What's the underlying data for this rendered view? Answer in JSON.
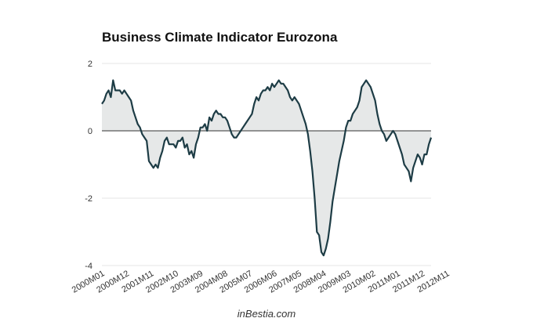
{
  "chart_data": {
    "type": "area",
    "title": "Business Climate Indicator Eurozona",
    "source": "inBestia.com",
    "ylim": [
      -4,
      2
    ],
    "yticks": [
      2,
      0,
      -2,
      -4
    ],
    "grid": true,
    "xticks": [
      "2000M01",
      "2000M12",
      "2001M11",
      "2002M10",
      "2003M09",
      "2004M08",
      "2005M07",
      "2006M06",
      "2007M05",
      "2008M04",
      "2009M03",
      "2010M02",
      "2011M01",
      "2011M12",
      "2012M11"
    ],
    "x_start": "2000M01",
    "x_frequency": "monthly",
    "series": [
      {
        "color": "#1d3c45",
        "fill": "#e6e8e8",
        "values": [
          0.8,
          0.9,
          1.1,
          1.2,
          1.0,
          1.5,
          1.2,
          1.2,
          1.2,
          1.1,
          1.2,
          1.1,
          1.0,
          0.9,
          0.6,
          0.4,
          0.2,
          0.1,
          -0.1,
          -0.2,
          -0.3,
          -0.9,
          -1.0,
          -1.1,
          -1.0,
          -1.1,
          -0.8,
          -0.6,
          -0.3,
          -0.2,
          -0.4,
          -0.4,
          -0.4,
          -0.5,
          -0.3,
          -0.3,
          -0.2,
          -0.5,
          -0.4,
          -0.7,
          -0.6,
          -0.8,
          -0.4,
          -0.2,
          0.1,
          0.1,
          0.2,
          0.0,
          0.4,
          0.3,
          0.5,
          0.6,
          0.5,
          0.5,
          0.4,
          0.4,
          0.3,
          0.1,
          -0.1,
          -0.2,
          -0.2,
          -0.1,
          0.0,
          0.1,
          0.2,
          0.3,
          0.4,
          0.5,
          0.8,
          1.0,
          0.9,
          1.1,
          1.2,
          1.2,
          1.3,
          1.2,
          1.4,
          1.3,
          1.4,
          1.5,
          1.4,
          1.4,
          1.3,
          1.2,
          1.0,
          0.9,
          1.0,
          0.9,
          0.8,
          0.6,
          0.4,
          0.2,
          -0.1,
          -0.6,
          -1.2,
          -2.0,
          -3.0,
          -3.1,
          -3.6,
          -3.7,
          -3.5,
          -3.2,
          -2.7,
          -2.1,
          -1.7,
          -1.3,
          -0.9,
          -0.6,
          -0.3,
          0.1,
          0.3,
          0.3,
          0.5,
          0.6,
          0.7,
          0.9,
          1.3,
          1.4,
          1.5,
          1.4,
          1.3,
          1.1,
          0.9,
          0.5,
          0.2,
          0.0,
          -0.1,
          -0.3,
          -0.2,
          -0.1,
          0.0,
          -0.1,
          -0.3,
          -0.5,
          -0.7,
          -1.0,
          -1.1,
          -1.2,
          -1.5,
          -1.1,
          -0.9,
          -0.7,
          -0.8,
          -1.0,
          -0.7,
          -0.7,
          -0.4,
          -0.2
        ]
      }
    ]
  }
}
